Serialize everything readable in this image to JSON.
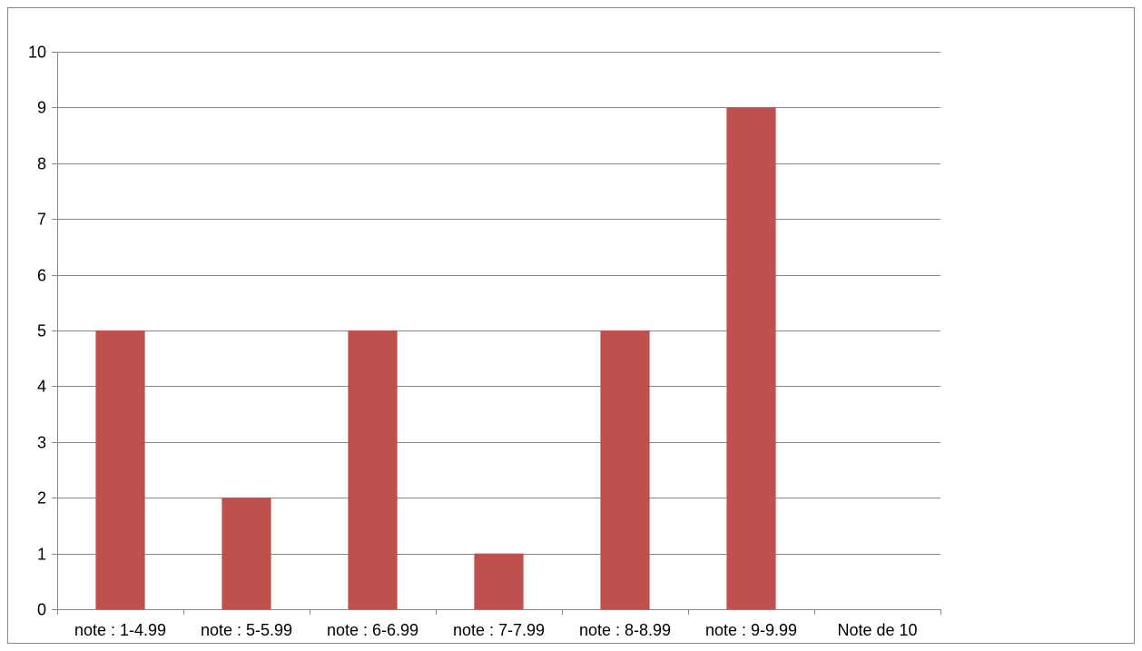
{
  "chart_data": {
    "type": "bar",
    "categories": [
      "note : 1-4.99",
      "note : 5-5.99",
      "note : 6-6.99",
      "note : 7-7.99",
      "note : 8-8.99",
      "note : 9-9.99",
      "Note de 10"
    ],
    "values": [
      5,
      2,
      5,
      1,
      5,
      9,
      0
    ],
    "title": "",
    "xlabel": "",
    "ylabel": "",
    "ylim": [
      0,
      10
    ],
    "yticks": [
      0,
      1,
      2,
      3,
      4,
      5,
      6,
      7,
      8,
      9,
      10
    ],
    "grid": true,
    "legend": "none",
    "colors": {
      "bar": "#c0504d",
      "grid": "#868686",
      "axis": "#868686",
      "border": "#868686"
    }
  }
}
